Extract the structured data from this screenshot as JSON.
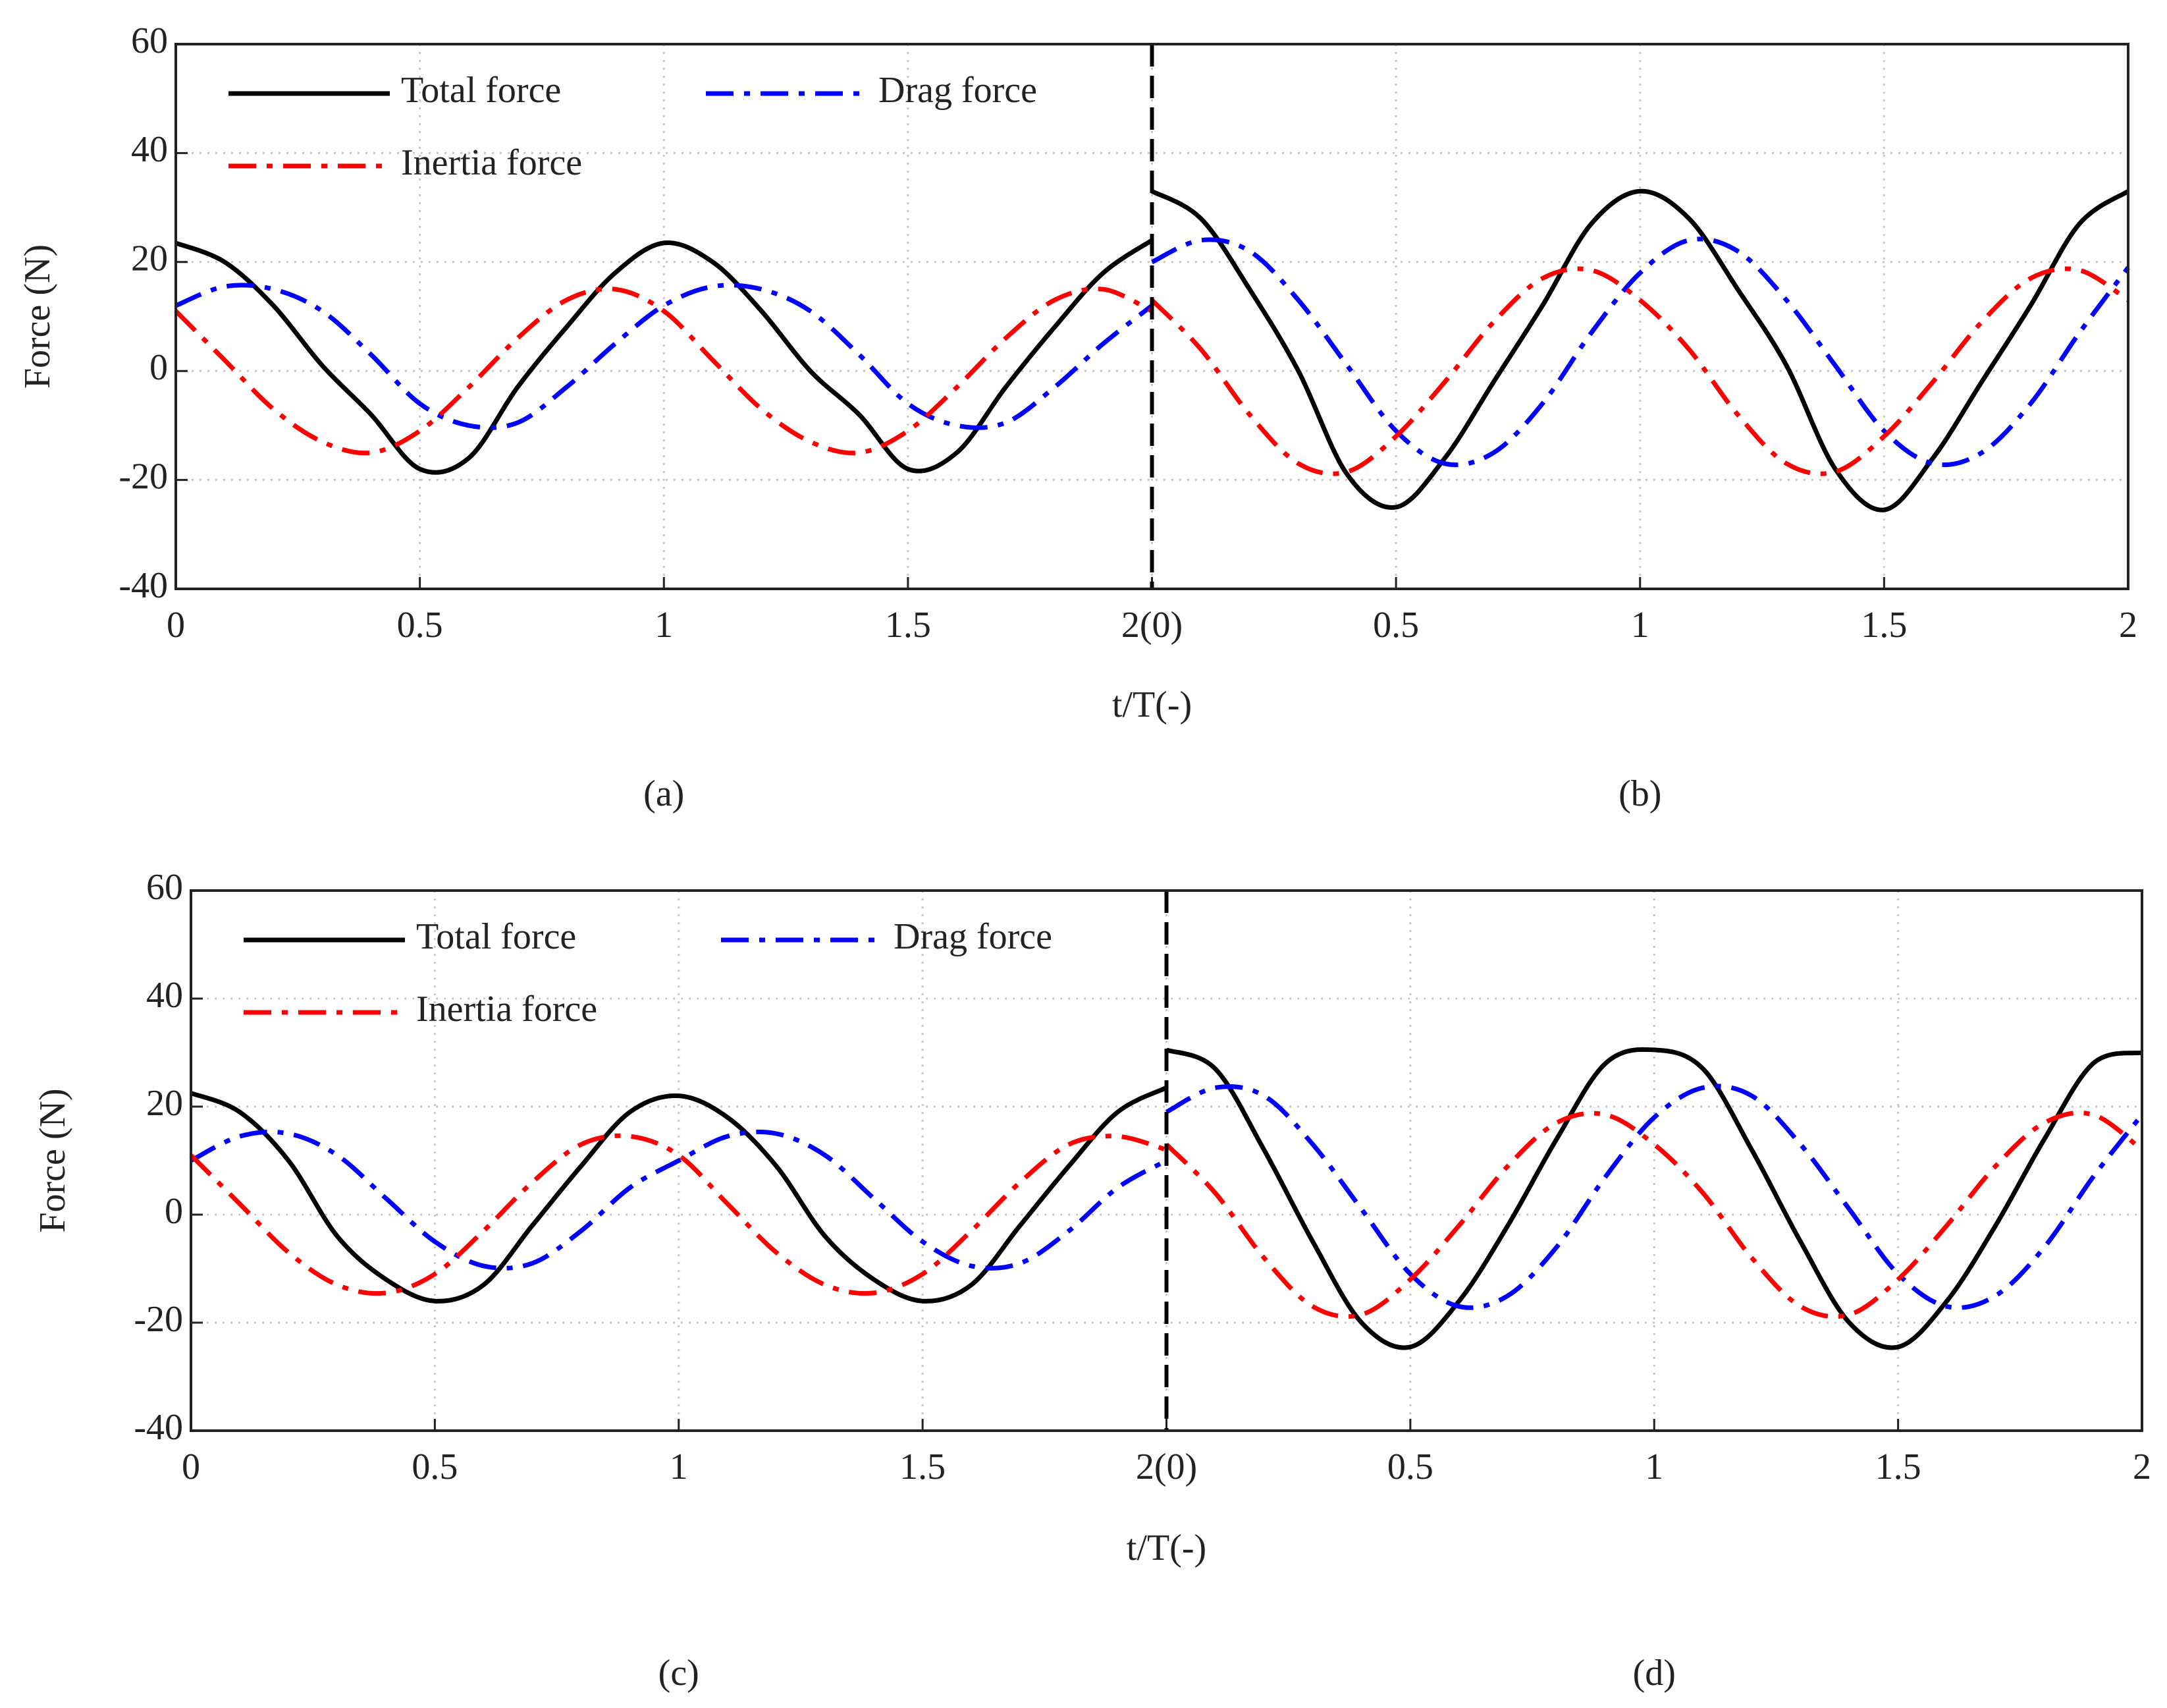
{
  "chart_data": [
    {
      "type": "line",
      "ylabel": "Force (N)",
      "xlabel": "t/T(-)",
      "panel_labels": [
        "(a)",
        "(b)"
      ],
      "divider_x": 2,
      "xlim": [
        0,
        4
      ],
      "ylim": [
        -40,
        60
      ],
      "xticks": [
        0,
        0.5,
        1,
        1.5,
        {
          "value": 2,
          "label": "2(0)"
        },
        {
          "value": 2.5,
          "label": "0.5"
        },
        {
          "value": 3,
          "label": "1"
        },
        {
          "value": 3.5,
          "label": "1.5"
        },
        {
          "value": 4,
          "label": "2"
        }
      ],
      "yticks": [
        -40,
        -20,
        0,
        20,
        40,
        60
      ],
      "grid": true,
      "x": [
        0,
        0.1,
        0.2,
        0.3,
        0.4,
        0.5,
        0.6,
        0.7,
        0.8,
        0.9,
        1,
        1.1,
        1.2,
        1.3,
        1.4,
        1.5,
        1.6,
        1.7,
        1.8,
        1.9,
        2,
        2,
        2,
        2.1,
        2.2,
        2.3,
        2.4,
        2.5,
        2.6,
        2.7,
        2.8,
        2.9,
        3,
        3.1,
        3.2,
        3.3,
        3.4,
        3.5,
        3.6,
        3.7,
        3.8,
        3.9,
        4
      ],
      "series": [
        {
          "name": "Total force",
          "color": "#000000",
          "style": "solid",
          "values": [
            23.5,
            20,
            12,
            1,
            -8,
            -18,
            -16,
            -3,
            8,
            18,
            23.5,
            20,
            11,
            0,
            -8,
            -18,
            -15,
            -3,
            8,
            18,
            24,
            null,
            33,
            28,
            15,
            0,
            -19,
            -25,
            -16,
            -2,
            12,
            27,
            33,
            28,
            15,
            1,
            -18,
            -25.5,
            -16,
            -2,
            12,
            27,
            33
          ]
        },
        {
          "name": "Drag force",
          "color": "#0000ff",
          "style": "dashdot",
          "values": [
            12,
            15.5,
            15,
            11,
            3,
            -6,
            -10,
            -9.5,
            -3,
            5,
            12,
            15.5,
            15,
            11,
            3,
            -6,
            -10,
            -9.5,
            -3,
            5,
            12,
            null,
            20,
            24,
            22,
            13,
            1,
            -11,
            -17,
            -15,
            -6,
            7,
            18,
            24,
            22,
            13,
            1,
            -11,
            -17,
            -15,
            -6,
            7,
            19
          ]
        },
        {
          "name": "Inertia force",
          "color": "#ff0000",
          "style": "dashdot",
          "values": [
            11,
            2,
            -7,
            -13,
            -15,
            -11,
            -3,
            6,
            13,
            15,
            11,
            2,
            -7,
            -13,
            -15,
            -11,
            -3,
            6,
            13,
            15,
            11,
            null,
            13,
            4,
            -8,
            -17,
            -18.5,
            -12,
            -2,
            9,
            17,
            18.5,
            13,
            4,
            -8,
            -17,
            -18.5,
            -12,
            -2,
            9,
            17,
            18.5,
            13
          ]
        }
      ]
    },
    {
      "type": "line",
      "ylabel": "Force (N)",
      "xlabel": "t/T(-)",
      "panel_labels": [
        "(c)",
        "(d)"
      ],
      "divider_x": 2,
      "xlim": [
        0,
        4
      ],
      "ylim": [
        -40,
        60
      ],
      "xticks": [
        0,
        0.5,
        1,
        1.5,
        {
          "value": 2,
          "label": "2(0)"
        },
        {
          "value": 2.5,
          "label": "0.5"
        },
        {
          "value": 3,
          "label": "1"
        },
        {
          "value": 3.5,
          "label": "1.5"
        },
        {
          "value": 4,
          "label": "2"
        }
      ],
      "yticks": [
        -40,
        -20,
        0,
        20,
        40,
        60
      ],
      "grid": true,
      "x": [
        0,
        0.1,
        0.2,
        0.3,
        0.4,
        0.5,
        0.6,
        0.7,
        0.8,
        0.9,
        1,
        1.1,
        1.2,
        1.3,
        1.4,
        1.5,
        1.6,
        1.7,
        1.8,
        1.9,
        2,
        2,
        2,
        2.1,
        2.2,
        2.3,
        2.4,
        2.5,
        2.6,
        2.7,
        2.8,
        2.9,
        3,
        3.1,
        3.2,
        3.3,
        3.4,
        3.5,
        3.6,
        3.7,
        3.8,
        3.9,
        4
      ],
      "series": [
        {
          "name": "Total force",
          "color": "#000000",
          "style": "solid",
          "values": [
            22.5,
            19,
            10,
            -4,
            -12,
            -16,
            -13,
            -2,
            9,
            19,
            22,
            18,
            9,
            -4,
            -12,
            -16,
            -13,
            -2,
            9,
            19,
            23.5,
            null,
            30.5,
            27,
            12,
            -5,
            -20,
            -24.5,
            -16,
            -2,
            14,
            28,
            30.5,
            27,
            12,
            -5,
            -20,
            -24.5,
            -16,
            -2,
            14,
            28,
            30
          ]
        },
        {
          "name": "Drag force",
          "color": "#0000ff",
          "style": "dashdot",
          "values": [
            10,
            14.5,
            15,
            11,
            3,
            -5,
            -9.5,
            -9,
            -3,
            5,
            10,
            14.5,
            15,
            11,
            3,
            -5,
            -9.5,
            -9,
            -3,
            5,
            10,
            null,
            19,
            23.5,
            22,
            13,
            1,
            -11,
            -17,
            -15,
            -6,
            7,
            18,
            23.5,
            22,
            13,
            1,
            -11,
            -17,
            -15,
            -6,
            7,
            18.5
          ]
        },
        {
          "name": "Inertia force",
          "color": "#ff0000",
          "style": "dashdot",
          "values": [
            11,
            2,
            -7,
            -13,
            -14.5,
            -11,
            -3,
            6,
            13,
            14.5,
            11,
            2,
            -7,
            -13,
            -14.5,
            -11,
            -3,
            6,
            13,
            14.5,
            12,
            null,
            13,
            4,
            -8,
            -17,
            -18.5,
            -12,
            -2,
            9,
            17,
            18.5,
            13,
            4,
            -8,
            -17,
            -18.5,
            -12,
            -2,
            9,
            17,
            18.5,
            12
          ]
        }
      ]
    }
  ]
}
